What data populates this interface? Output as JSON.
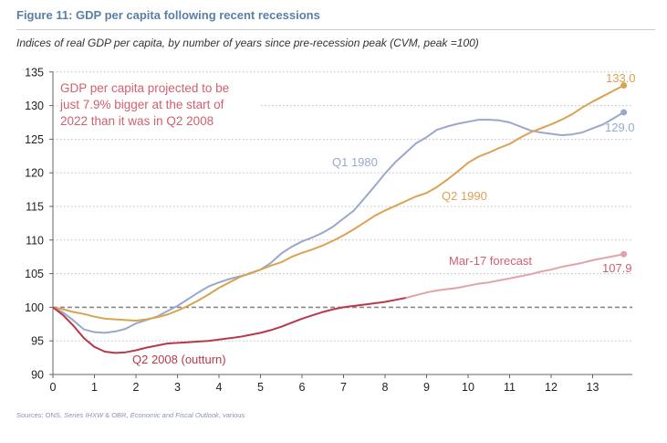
{
  "figure": {
    "title": "Figure 11:  GDP per capita following recent recessions",
    "subtitle": "Indices of real GDP per capita, by number of years since pre-recession peak (CVM, peak =100)",
    "source_prefix": "Sources: ONS, ",
    "source_italic1": "Series IHXW",
    "source_mid": " & OBR, ",
    "source_italic2": "Economic and Fiscal Outlook",
    "source_suffix": ", various"
  },
  "colors": {
    "q1_1980": "#9aa8cc",
    "q2_1990": "#d9a352",
    "q2_2008": "#b83a4a",
    "forecast": "#e3a2a8",
    "annotation": "#d06070",
    "baseline": "#888888"
  },
  "chart_data": {
    "type": "line",
    "title": "",
    "xlabel": "",
    "ylabel": "",
    "xlim": [
      0,
      14
    ],
    "ylim": [
      90,
      135
    ],
    "x_ticks": [
      "0",
      "1",
      "2",
      "3",
      "4",
      "5",
      "6",
      "7",
      "8",
      "9",
      "10",
      "11",
      "12",
      "13"
    ],
    "y_ticks": [
      "90",
      "95",
      "100",
      "105",
      "110",
      "115",
      "120",
      "125",
      "130",
      "135"
    ],
    "grid": "horizontal dotted",
    "baseline": 100,
    "series": [
      {
        "name": "Q1 1980",
        "end_label": "129.0",
        "points": [
          [
            0,
            100
          ],
          [
            0.25,
            99.2
          ],
          [
            0.5,
            98
          ],
          [
            0.75,
            96.7
          ],
          [
            1,
            96.3
          ],
          [
            1.25,
            96.2
          ],
          [
            1.5,
            96.4
          ],
          [
            1.75,
            96.8
          ],
          [
            2,
            97.6
          ],
          [
            2.25,
            98.1
          ],
          [
            2.5,
            98.6
          ],
          [
            2.75,
            99.4
          ],
          [
            3,
            100.2
          ],
          [
            3.25,
            101.2
          ],
          [
            3.5,
            102.2
          ],
          [
            3.75,
            103.1
          ],
          [
            4,
            103.7
          ],
          [
            4.25,
            104.2
          ],
          [
            4.5,
            104.6
          ],
          [
            4.75,
            105
          ],
          [
            5,
            105.6
          ],
          [
            5.25,
            106.6
          ],
          [
            5.5,
            108
          ],
          [
            5.75,
            109
          ],
          [
            6,
            109.8
          ],
          [
            6.25,
            110.4
          ],
          [
            6.5,
            111.1
          ],
          [
            6.75,
            112
          ],
          [
            7,
            113.2
          ],
          [
            7.25,
            114.4
          ],
          [
            7.5,
            116.2
          ],
          [
            7.75,
            118
          ],
          [
            8,
            119.9
          ],
          [
            8.25,
            121.6
          ],
          [
            8.5,
            123
          ],
          [
            8.75,
            124.4
          ],
          [
            9,
            125.3
          ],
          [
            9.25,
            126.4
          ],
          [
            9.5,
            126.9
          ],
          [
            9.75,
            127.3
          ],
          [
            10,
            127.6
          ],
          [
            10.25,
            127.9
          ],
          [
            10.5,
            127.9
          ],
          [
            10.75,
            127.8
          ],
          [
            11,
            127.5
          ],
          [
            11.25,
            126.9
          ],
          [
            11.5,
            126.3
          ],
          [
            11.75,
            126
          ],
          [
            12,
            125.8
          ],
          [
            12.25,
            125.6
          ],
          [
            12.5,
            125.7
          ],
          [
            12.75,
            126
          ],
          [
            13,
            126.6
          ],
          [
            13.25,
            127.2
          ],
          [
            13.5,
            128.1
          ],
          [
            13.75,
            129
          ]
        ]
      },
      {
        "name": "Q2 1990",
        "end_label": "133.0",
        "points": [
          [
            0,
            100
          ],
          [
            0.25,
            99.7
          ],
          [
            0.5,
            99.3
          ],
          [
            0.75,
            99
          ],
          [
            1,
            98.6
          ],
          [
            1.25,
            98.3
          ],
          [
            1.5,
            98.2
          ],
          [
            1.75,
            98.1
          ],
          [
            2,
            98
          ],
          [
            2.25,
            98.2
          ],
          [
            2.5,
            98.5
          ],
          [
            2.75,
            98.9
          ],
          [
            3,
            99.5
          ],
          [
            3.25,
            100.2
          ],
          [
            3.5,
            101
          ],
          [
            3.75,
            101.9
          ],
          [
            4,
            102.9
          ],
          [
            4.25,
            103.7
          ],
          [
            4.5,
            104.5
          ],
          [
            4.75,
            105.1
          ],
          [
            5,
            105.6
          ],
          [
            5.25,
            106.2
          ],
          [
            5.5,
            106.7
          ],
          [
            5.75,
            107.5
          ],
          [
            6,
            108.1
          ],
          [
            6.25,
            108.6
          ],
          [
            6.5,
            109.2
          ],
          [
            6.75,
            109.9
          ],
          [
            7,
            110.7
          ],
          [
            7.25,
            111.6
          ],
          [
            7.5,
            112.6
          ],
          [
            7.75,
            113.6
          ],
          [
            8,
            114.4
          ],
          [
            8.25,
            115.1
          ],
          [
            8.5,
            115.8
          ],
          [
            8.75,
            116.5
          ],
          [
            9,
            117
          ],
          [
            9.25,
            117.9
          ],
          [
            9.5,
            119
          ],
          [
            9.75,
            120.2
          ],
          [
            10,
            121.5
          ],
          [
            10.25,
            122.4
          ],
          [
            10.5,
            123
          ],
          [
            10.75,
            123.7
          ],
          [
            11,
            124.3
          ],
          [
            11.25,
            125.2
          ],
          [
            11.5,
            126
          ],
          [
            11.75,
            126.6
          ],
          [
            12,
            127.2
          ],
          [
            12.25,
            127.9
          ],
          [
            12.5,
            128.7
          ],
          [
            12.75,
            129.7
          ],
          [
            13,
            130.6
          ],
          [
            13.25,
            131.4
          ],
          [
            13.5,
            132.2
          ],
          [
            13.75,
            133
          ]
        ]
      },
      {
        "name": "Q2 2008 (outturn)",
        "points": [
          [
            0,
            100
          ],
          [
            0.25,
            98.8
          ],
          [
            0.5,
            97.2
          ],
          [
            0.75,
            95.4
          ],
          [
            1,
            94.1
          ],
          [
            1.25,
            93.4
          ],
          [
            1.5,
            93.2
          ],
          [
            1.75,
            93.3
          ],
          [
            2,
            93.6
          ],
          [
            2.25,
            94
          ],
          [
            2.5,
            94.3
          ],
          [
            2.75,
            94.6
          ],
          [
            3,
            94.7
          ],
          [
            3.25,
            94.8
          ],
          [
            3.5,
            94.9
          ],
          [
            3.75,
            95
          ],
          [
            4,
            95.2
          ],
          [
            4.25,
            95.4
          ],
          [
            4.5,
            95.6
          ],
          [
            4.75,
            95.9
          ],
          [
            5,
            96.2
          ],
          [
            5.25,
            96.6
          ],
          [
            5.5,
            97.1
          ],
          [
            5.75,
            97.7
          ],
          [
            6,
            98.3
          ],
          [
            6.25,
            98.8
          ],
          [
            6.5,
            99.3
          ],
          [
            6.75,
            99.7
          ],
          [
            7,
            100
          ],
          [
            7.25,
            100.2
          ],
          [
            7.5,
            100.4
          ],
          [
            7.75,
            100.6
          ],
          [
            8,
            100.8
          ],
          [
            8.25,
            101.1
          ],
          [
            8.5,
            101.4
          ]
        ]
      },
      {
        "name": "Mar-17 forecast",
        "end_label": "107.9",
        "points": [
          [
            8.5,
            101.4
          ],
          [
            8.75,
            101.8
          ],
          [
            9,
            102.2
          ],
          [
            9.25,
            102.5
          ],
          [
            9.5,
            102.7
          ],
          [
            9.75,
            102.9
          ],
          [
            10,
            103.2
          ],
          [
            10.25,
            103.5
          ],
          [
            10.5,
            103.7
          ],
          [
            10.75,
            104
          ],
          [
            11,
            104.3
          ],
          [
            11.25,
            104.6
          ],
          [
            11.5,
            104.9
          ],
          [
            11.75,
            105.3
          ],
          [
            12,
            105.6
          ],
          [
            12.25,
            106
          ],
          [
            12.5,
            106.3
          ],
          [
            12.75,
            106.6
          ],
          [
            13,
            107
          ],
          [
            13.25,
            107.3
          ],
          [
            13.5,
            107.6
          ],
          [
            13.75,
            107.9
          ]
        ]
      }
    ],
    "annotation": {
      "lines": [
        "GDP per capita projected to be",
        "just 7.9% bigger at the start of",
        "2022 than it was in Q2 2008"
      ]
    }
  }
}
